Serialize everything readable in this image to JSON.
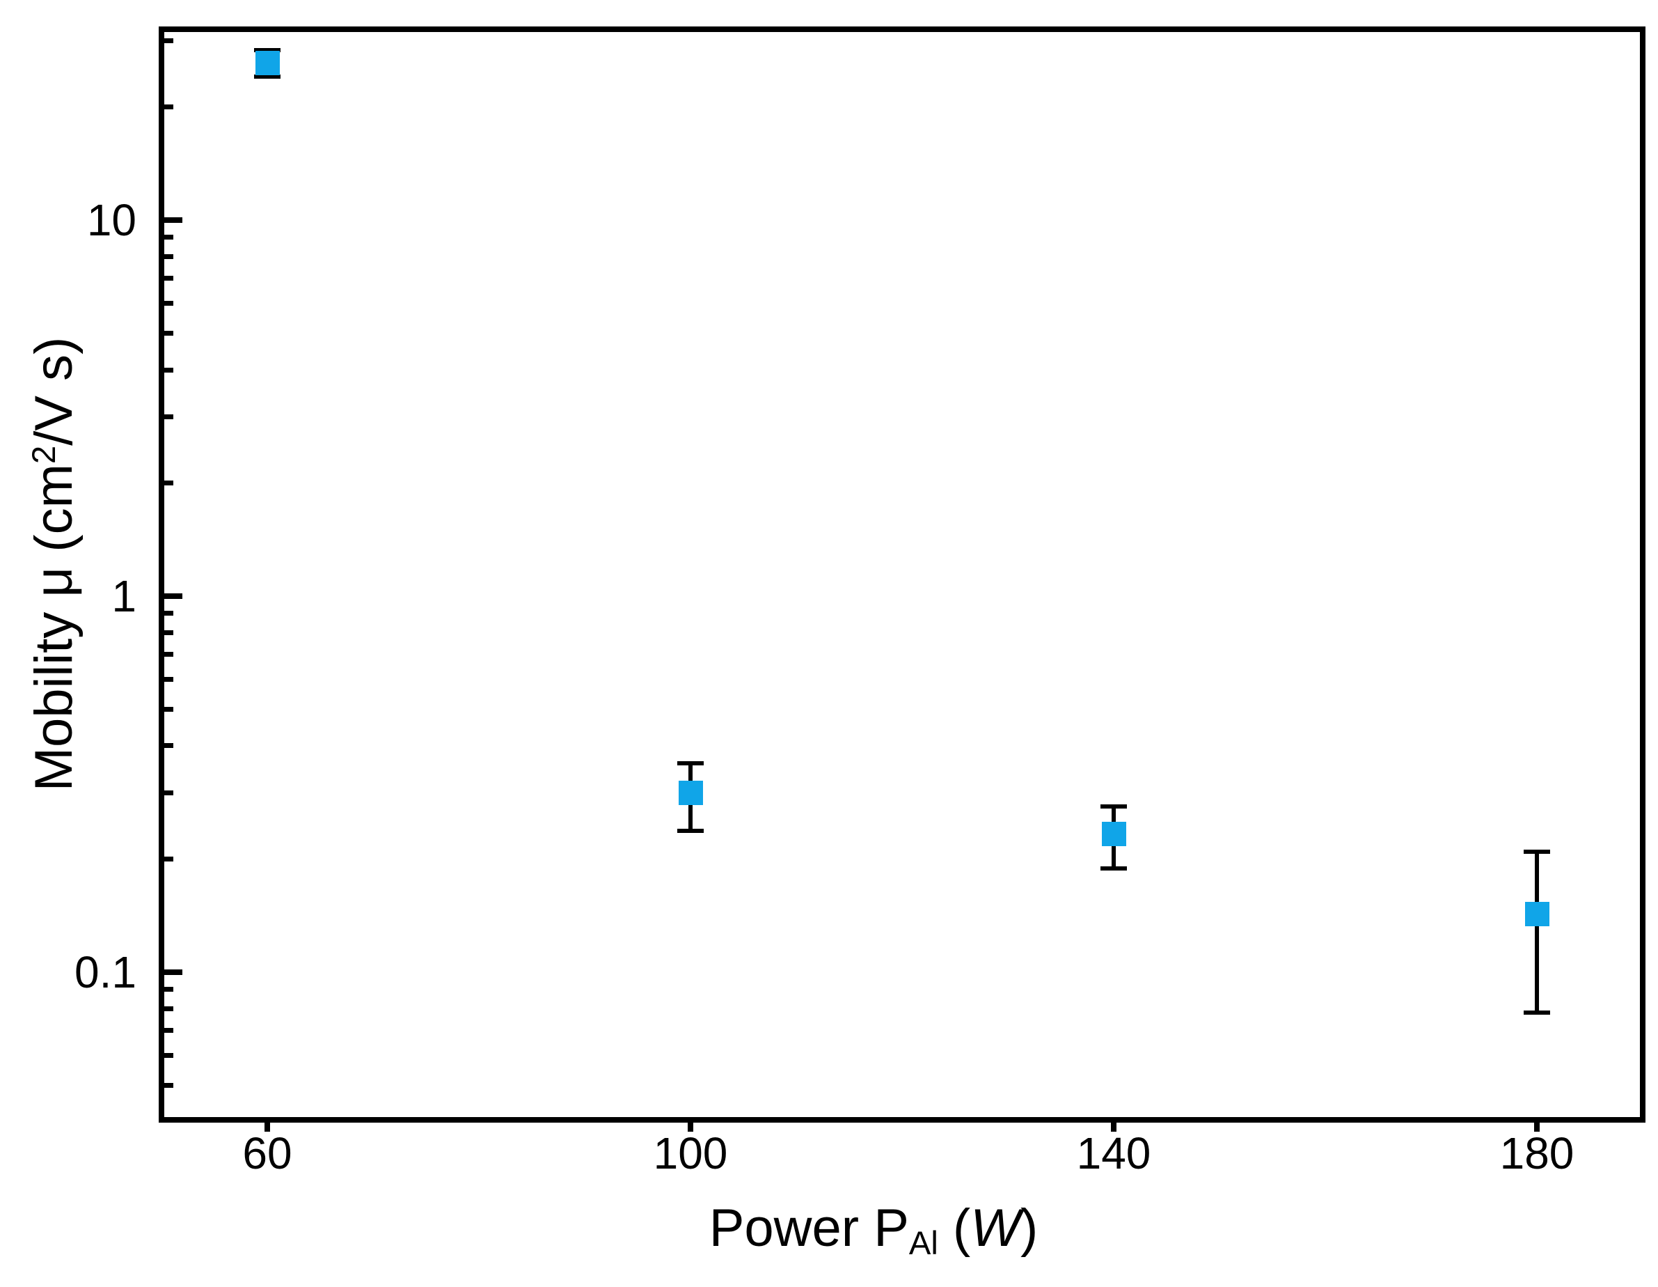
{
  "chart_data": {
    "type": "scatter",
    "title": "",
    "xlabel": "Power P_Al (W)",
    "ylabel": "Mobility μ (cm^2/V s)",
    "xlabel_segments": [
      {
        "t": "Power P"
      },
      {
        "t": "Al",
        "style": "sub"
      },
      {
        "t": " ("
      },
      {
        "t": "W",
        "style": "italic"
      },
      {
        "t": ")"
      }
    ],
    "ylabel_segments": [
      {
        "t": "Mobility μ (cm"
      },
      {
        "t": "2",
        "style": "sup"
      },
      {
        "t": "/V s)"
      }
    ],
    "x_scale": "linear",
    "y_scale": "log",
    "xlim": [
      50,
      190
    ],
    "ylim": [
      0.0405,
      32.2
    ],
    "grid": false,
    "legend_position": "none",
    "x_ticks": [
      {
        "value": 60,
        "label": "60"
      },
      {
        "value": 100,
        "label": "100"
      },
      {
        "value": 140,
        "label": "140"
      },
      {
        "value": 180,
        "label": "180"
      }
    ],
    "y_major_ticks": [
      {
        "value": 10,
        "label": "10"
      },
      {
        "value": 1,
        "label": "1"
      },
      {
        "value": 0.1,
        "label": "0.1"
      }
    ],
    "y_minor_ticks": [
      30,
      20,
      9,
      8,
      7,
      6,
      5,
      4,
      3,
      2,
      0.9,
      0.8,
      0.7,
      0.6,
      0.5,
      0.4,
      0.3,
      0.2,
      0.09,
      0.08,
      0.07,
      0.06,
      0.05
    ],
    "series": [
      {
        "name": "mobility",
        "marker": "square",
        "color": "#10A5E8",
        "points": [
          {
            "x": 60,
            "y": 26.2,
            "err_plus": 2.1,
            "err_minus": 2.1
          },
          {
            "x": 100,
            "y": 0.3,
            "err_plus": 0.06,
            "err_minus": 0.062
          },
          {
            "x": 140,
            "y": 0.233,
            "err_plus": 0.043,
            "err_minus": 0.044
          },
          {
            "x": 180,
            "y": 0.143,
            "err_plus": 0.066,
            "err_minus": 0.065
          }
        ]
      }
    ]
  },
  "colors": {
    "marker": "#10A5E8",
    "axis": "#000000",
    "background": "#FFFFFF"
  }
}
